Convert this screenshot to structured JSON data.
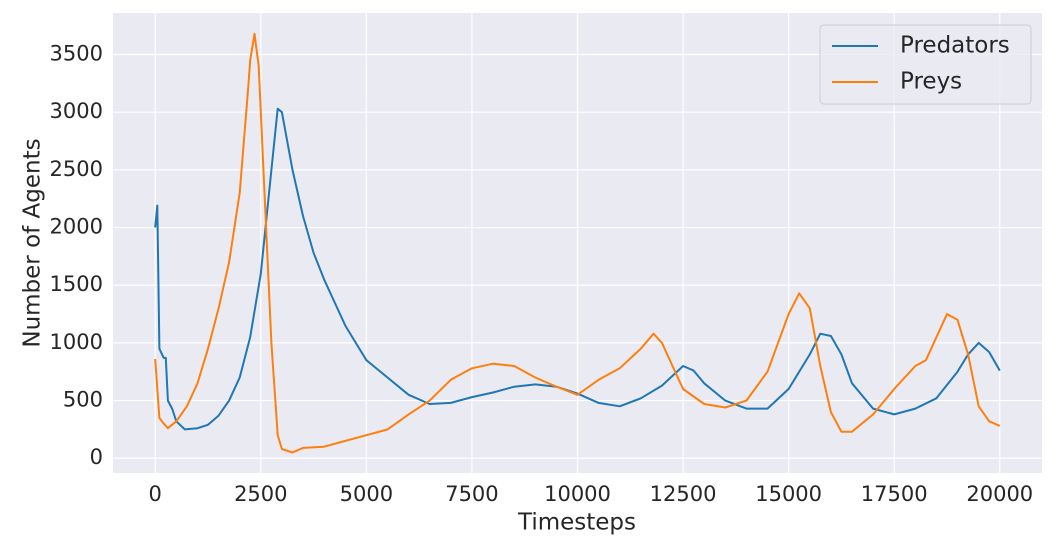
{
  "chart_data": {
    "type": "line",
    "x_label": "Timesteps",
    "y_label": "Number of Agents",
    "xlim": [
      -1000,
      21000
    ],
    "ylim": [
      -128,
      3860
    ],
    "xticks": [
      0,
      2500,
      5000,
      7500,
      10000,
      12500,
      15000,
      17500,
      20000
    ],
    "yticks": [
      0,
      500,
      1000,
      1500,
      2000,
      2500,
      3000,
      3500
    ],
    "grid": true,
    "legend": "upper right",
    "series": [
      {
        "name": "Predators",
        "color": "#1f77b4",
        "x": [
          0,
          50,
          100,
          200,
          250,
          300,
          400,
          500,
          700,
          1000,
          1250,
          1500,
          1750,
          2000,
          2250,
          2500,
          2750,
          2900,
          3000,
          3250,
          3500,
          3750,
          4000,
          4250,
          4500,
          4750,
          5000,
          5500,
          6000,
          6500,
          7000,
          7500,
          8000,
          8500,
          9000,
          9500,
          10000,
          10500,
          11000,
          11500,
          12000,
          12500,
          12750,
          13000,
          13500,
          14000,
          14500,
          15000,
          15500,
          15750,
          16000,
          16250,
          16500,
          17000,
          17500,
          18000,
          18500,
          19000,
          19250,
          19500,
          19750,
          20000
        ],
        "values": [
          2000,
          2190,
          950,
          870,
          870,
          500,
          430,
          320,
          250,
          260,
          290,
          370,
          500,
          700,
          1050,
          1600,
          2500,
          3030,
          3000,
          2500,
          2100,
          1780,
          1550,
          1350,
          1150,
          1000,
          850,
          700,
          550,
          470,
          480,
          530,
          570,
          620,
          640,
          620,
          560,
          480,
          450,
          520,
          630,
          800,
          760,
          650,
          500,
          430,
          430,
          600,
          900,
          1080,
          1060,
          900,
          650,
          430,
          380,
          430,
          520,
          750,
          900,
          1000,
          920,
          760
        ]
      },
      {
        "name": "Preys",
        "color": "#ff7f0e",
        "x": [
          0,
          50,
          100,
          200,
          300,
          500,
          750,
          1000,
          1250,
          1500,
          1750,
          2000,
          2200,
          2250,
          2350,
          2450,
          2500,
          2750,
          2900,
          3000,
          3250,
          3500,
          4000,
          4500,
          5000,
          5500,
          6000,
          6500,
          7000,
          7500,
          8000,
          8500,
          9000,
          9500,
          10000,
          10500,
          11000,
          11500,
          11800,
          12000,
          12250,
          12500,
          13000,
          13500,
          14000,
          14500,
          15000,
          15250,
          15500,
          15750,
          16000,
          16250,
          16500,
          17000,
          17500,
          18000,
          18250,
          18750,
          19000,
          19250,
          19500,
          19750,
          20000
        ],
        "values": [
          860,
          600,
          350,
          300,
          260,
          320,
          450,
          650,
          950,
          1300,
          1700,
          2300,
          3200,
          3450,
          3680,
          3400,
          3000,
          1000,
          200,
          80,
          50,
          90,
          100,
          150,
          200,
          250,
          380,
          500,
          680,
          780,
          820,
          800,
          700,
          620,
          550,
          680,
          780,
          950,
          1080,
          1000,
          800,
          600,
          470,
          440,
          500,
          750,
          1250,
          1430,
          1300,
          800,
          400,
          230,
          230,
          380,
          600,
          800,
          850,
          1250,
          1200,
          900,
          450,
          320,
          280
        ]
      }
    ]
  }
}
